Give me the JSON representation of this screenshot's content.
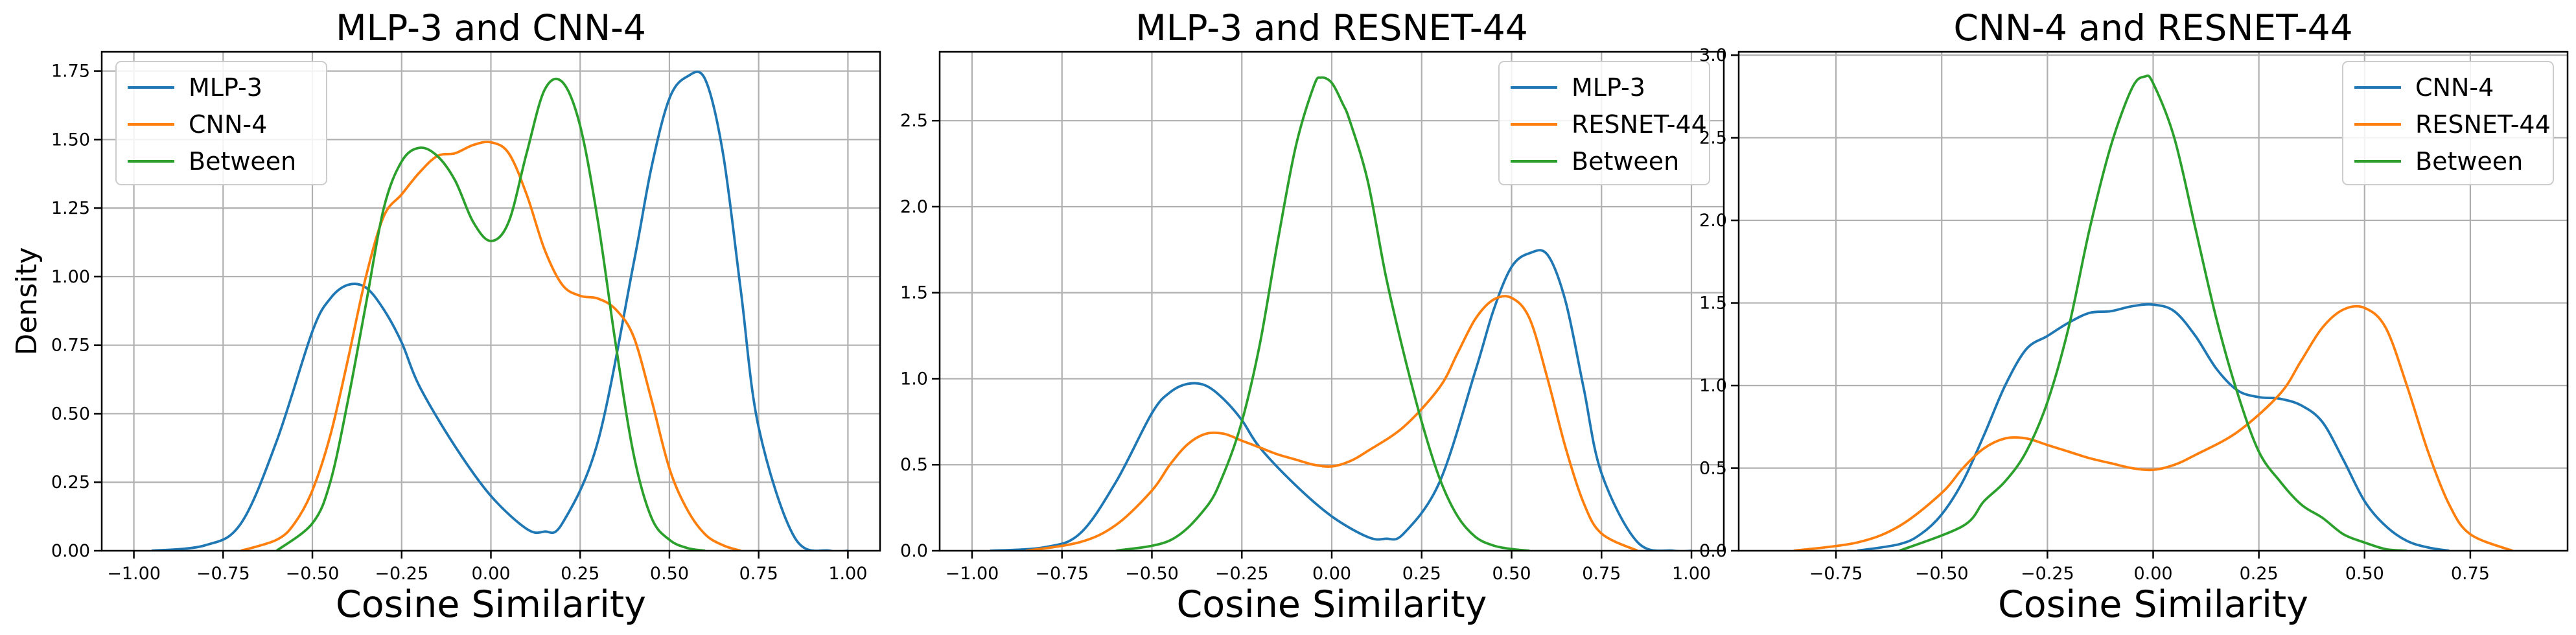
{
  "chart_data": [
    {
      "type": "line",
      "title": "MLP-3 and CNN-4",
      "xlabel": "Cosine Similarity",
      "ylabel": "Density",
      "xlim": [
        -1.09,
        1.09
      ],
      "ylim": [
        0.0,
        1.82
      ],
      "x_ticks": [
        -1.0,
        -0.75,
        -0.5,
        -0.25,
        0.0,
        0.25,
        0.5,
        0.75,
        1.0
      ],
      "x_tick_labels": [
        "−1.00",
        "−0.75",
        "−0.50",
        "−0.25",
        "0.00",
        "0.25",
        "0.50",
        "0.75",
        "1.00"
      ],
      "y_ticks": [
        0.0,
        0.25,
        0.5,
        0.75,
        1.0,
        1.25,
        1.5,
        1.75
      ],
      "y_tick_labels": [
        "0.00",
        "0.25",
        "0.50",
        "0.75",
        "1.00",
        "1.25",
        "1.50",
        "1.75"
      ],
      "grid": true,
      "legend_position": "upper-left",
      "series": [
        {
          "name": "MLP-3",
          "color": "#1f77b4",
          "x": [
            -0.95,
            -0.8,
            -0.7,
            -0.6,
            -0.5,
            -0.45,
            -0.4,
            -0.35,
            -0.3,
            -0.25,
            -0.2,
            -0.1,
            0.0,
            0.1,
            0.15,
            0.2,
            0.3,
            0.4,
            0.45,
            0.5,
            0.55,
            0.6,
            0.65,
            0.7,
            0.75,
            0.85,
            0.95,
            1.0
          ],
          "y": [
            0.0,
            0.02,
            0.1,
            0.4,
            0.8,
            0.92,
            0.97,
            0.96,
            0.88,
            0.76,
            0.6,
            0.38,
            0.2,
            0.08,
            0.07,
            0.1,
            0.4,
            1.05,
            1.4,
            1.65,
            1.73,
            1.72,
            1.45,
            0.95,
            0.45,
            0.05,
            0.0,
            0.0
          ]
        },
        {
          "name": "CNN-4",
          "color": "#ff7f0e",
          "x": [
            -0.7,
            -0.6,
            -0.55,
            -0.5,
            -0.45,
            -0.4,
            -0.35,
            -0.3,
            -0.25,
            -0.2,
            -0.15,
            -0.1,
            -0.05,
            0.0,
            0.05,
            0.1,
            0.15,
            0.2,
            0.25,
            0.3,
            0.35,
            0.4,
            0.45,
            0.5,
            0.55,
            0.6,
            0.65,
            0.7
          ],
          "y": [
            0.0,
            0.04,
            0.1,
            0.22,
            0.42,
            0.7,
            1.0,
            1.22,
            1.3,
            1.38,
            1.44,
            1.45,
            1.48,
            1.49,
            1.45,
            1.3,
            1.1,
            0.97,
            0.93,
            0.92,
            0.88,
            0.78,
            0.55,
            0.3,
            0.15,
            0.06,
            0.02,
            0.0
          ]
        },
        {
          "name": "Between",
          "color": "#2ca02c",
          "x": [
            -0.6,
            -0.5,
            -0.45,
            -0.4,
            -0.35,
            -0.3,
            -0.25,
            -0.2,
            -0.15,
            -0.1,
            -0.05,
            0.0,
            0.05,
            0.1,
            0.15,
            0.2,
            0.25,
            0.3,
            0.35,
            0.4,
            0.45,
            0.5,
            0.55,
            0.6
          ],
          "y": [
            0.0,
            0.1,
            0.25,
            0.55,
            0.9,
            1.25,
            1.42,
            1.47,
            1.44,
            1.35,
            1.2,
            1.13,
            1.2,
            1.45,
            1.68,
            1.71,
            1.55,
            1.2,
            0.75,
            0.35,
            0.12,
            0.04,
            0.01,
            0.0
          ]
        }
      ]
    },
    {
      "type": "line",
      "title": "MLP-3 and RESNET-44",
      "xlabel": "Cosine Similarity",
      "ylabel": "",
      "xlim": [
        -1.09,
        1.09
      ],
      "ylim": [
        0.0,
        2.9
      ],
      "x_ticks": [
        -1.0,
        -0.75,
        -0.5,
        -0.25,
        0.0,
        0.25,
        0.5,
        0.75,
        1.0
      ],
      "x_tick_labels": [
        "−1.00",
        "−0.75",
        "−0.50",
        "−0.25",
        "0.00",
        "0.25",
        "0.50",
        "0.75",
        "1.00"
      ],
      "y_ticks": [
        0.0,
        0.5,
        1.0,
        1.5,
        2.0,
        2.5
      ],
      "y_tick_labels": [
        "0.0",
        "0.5",
        "1.0",
        "1.5",
        "2.0",
        "2.5"
      ],
      "grid": true,
      "legend_position": "upper-right",
      "series": [
        {
          "name": "MLP-3",
          "color": "#1f77b4",
          "x": [
            -0.95,
            -0.8,
            -0.7,
            -0.6,
            -0.5,
            -0.45,
            -0.4,
            -0.35,
            -0.3,
            -0.25,
            -0.2,
            -0.1,
            0.0,
            0.1,
            0.15,
            0.2,
            0.3,
            0.4,
            0.45,
            0.5,
            0.55,
            0.6,
            0.65,
            0.7,
            0.75,
            0.85,
            0.95,
            1.0
          ],
          "y": [
            0.0,
            0.02,
            0.1,
            0.4,
            0.8,
            0.92,
            0.97,
            0.96,
            0.88,
            0.76,
            0.6,
            0.38,
            0.2,
            0.08,
            0.07,
            0.1,
            0.4,
            1.05,
            1.4,
            1.65,
            1.73,
            1.72,
            1.45,
            0.95,
            0.45,
            0.05,
            0.0,
            0.0
          ]
        },
        {
          "name": "RESNET-44",
          "color": "#ff7f0e",
          "x": [
            -0.85,
            -0.7,
            -0.6,
            -0.5,
            -0.45,
            -0.4,
            -0.35,
            -0.3,
            -0.25,
            -0.2,
            -0.15,
            -0.1,
            -0.05,
            0.0,
            0.05,
            0.1,
            0.2,
            0.3,
            0.35,
            0.4,
            0.45,
            0.5,
            0.55,
            0.6,
            0.65,
            0.7,
            0.75,
            0.85
          ],
          "y": [
            0.0,
            0.05,
            0.15,
            0.35,
            0.5,
            0.62,
            0.68,
            0.68,
            0.64,
            0.6,
            0.56,
            0.53,
            0.5,
            0.49,
            0.52,
            0.58,
            0.72,
            0.95,
            1.15,
            1.35,
            1.46,
            1.47,
            1.35,
            1.0,
            0.6,
            0.28,
            0.1,
            0.0
          ]
        },
        {
          "name": "Between",
          "color": "#2ca02c",
          "x": [
            -0.6,
            -0.45,
            -0.35,
            -0.3,
            -0.25,
            -0.2,
            -0.15,
            -0.1,
            -0.05,
            -0.03,
            0.0,
            0.03,
            0.05,
            0.1,
            0.15,
            0.2,
            0.25,
            0.3,
            0.35,
            0.4,
            0.45,
            0.5,
            0.55
          ],
          "y": [
            0.0,
            0.06,
            0.25,
            0.45,
            0.75,
            1.2,
            1.8,
            2.35,
            2.7,
            2.75,
            2.72,
            2.6,
            2.5,
            2.15,
            1.6,
            1.15,
            0.75,
            0.42,
            0.2,
            0.08,
            0.03,
            0.01,
            0.0
          ]
        }
      ]
    },
    {
      "type": "line",
      "title": "CNN-4 and RESNET-44",
      "xlabel": "Cosine Similarity",
      "ylabel": "",
      "xlim": [
        -0.98,
        0.98
      ],
      "ylim": [
        0.0,
        3.02
      ],
      "x_ticks": [
        -0.75,
        -0.5,
        -0.25,
        0.0,
        0.25,
        0.5,
        0.75
      ],
      "x_tick_labels": [
        "−0.75",
        "−0.50",
        "−0.25",
        "0.00",
        "0.25",
        "0.50",
        "0.75"
      ],
      "y_ticks": [
        0.0,
        0.5,
        1.0,
        1.5,
        2.0,
        2.5,
        3.0
      ],
      "y_tick_labels": [
        "0.0",
        "0.5",
        "1.0",
        "1.5",
        "2.0",
        "2.5",
        "3.0"
      ],
      "grid": true,
      "legend_position": "upper-right",
      "series": [
        {
          "name": "CNN-4",
          "color": "#1f77b4",
          "x": [
            -0.7,
            -0.6,
            -0.55,
            -0.5,
            -0.45,
            -0.4,
            -0.35,
            -0.3,
            -0.25,
            -0.2,
            -0.15,
            -0.1,
            -0.05,
            0.0,
            0.05,
            0.1,
            0.15,
            0.2,
            0.25,
            0.3,
            0.35,
            0.4,
            0.45,
            0.5,
            0.55,
            0.6,
            0.65,
            0.7
          ],
          "y": [
            0.0,
            0.04,
            0.1,
            0.22,
            0.42,
            0.7,
            1.0,
            1.22,
            1.3,
            1.38,
            1.44,
            1.45,
            1.48,
            1.49,
            1.45,
            1.3,
            1.1,
            0.97,
            0.93,
            0.92,
            0.88,
            0.78,
            0.55,
            0.3,
            0.15,
            0.06,
            0.02,
            0.0
          ]
        },
        {
          "name": "RESNET-44",
          "color": "#ff7f0e",
          "x": [
            -0.85,
            -0.7,
            -0.6,
            -0.5,
            -0.45,
            -0.4,
            -0.35,
            -0.3,
            -0.25,
            -0.2,
            -0.15,
            -0.1,
            -0.05,
            0.0,
            0.05,
            0.1,
            0.2,
            0.3,
            0.35,
            0.4,
            0.45,
            0.5,
            0.55,
            0.6,
            0.65,
            0.7,
            0.75,
            0.85
          ],
          "y": [
            0.0,
            0.05,
            0.15,
            0.35,
            0.5,
            0.62,
            0.68,
            0.68,
            0.64,
            0.6,
            0.56,
            0.53,
            0.5,
            0.49,
            0.52,
            0.58,
            0.72,
            0.95,
            1.15,
            1.35,
            1.46,
            1.47,
            1.35,
            1.0,
            0.6,
            0.28,
            0.1,
            0.0
          ]
        },
        {
          "name": "Between",
          "color": "#2ca02c",
          "x": [
            -0.6,
            -0.45,
            -0.4,
            -0.35,
            -0.3,
            -0.25,
            -0.2,
            -0.15,
            -0.1,
            -0.05,
            -0.02,
            0.0,
            0.05,
            0.1,
            0.15,
            0.2,
            0.25,
            0.3,
            0.35,
            0.4,
            0.45,
            0.5,
            0.55,
            0.6
          ],
          "y": [
            0.0,
            0.15,
            0.3,
            0.42,
            0.6,
            0.9,
            1.35,
            1.95,
            2.45,
            2.8,
            2.87,
            2.83,
            2.5,
            1.95,
            1.4,
            0.95,
            0.6,
            0.42,
            0.28,
            0.2,
            0.1,
            0.05,
            0.01,
            0.0
          ]
        }
      ]
    }
  ]
}
